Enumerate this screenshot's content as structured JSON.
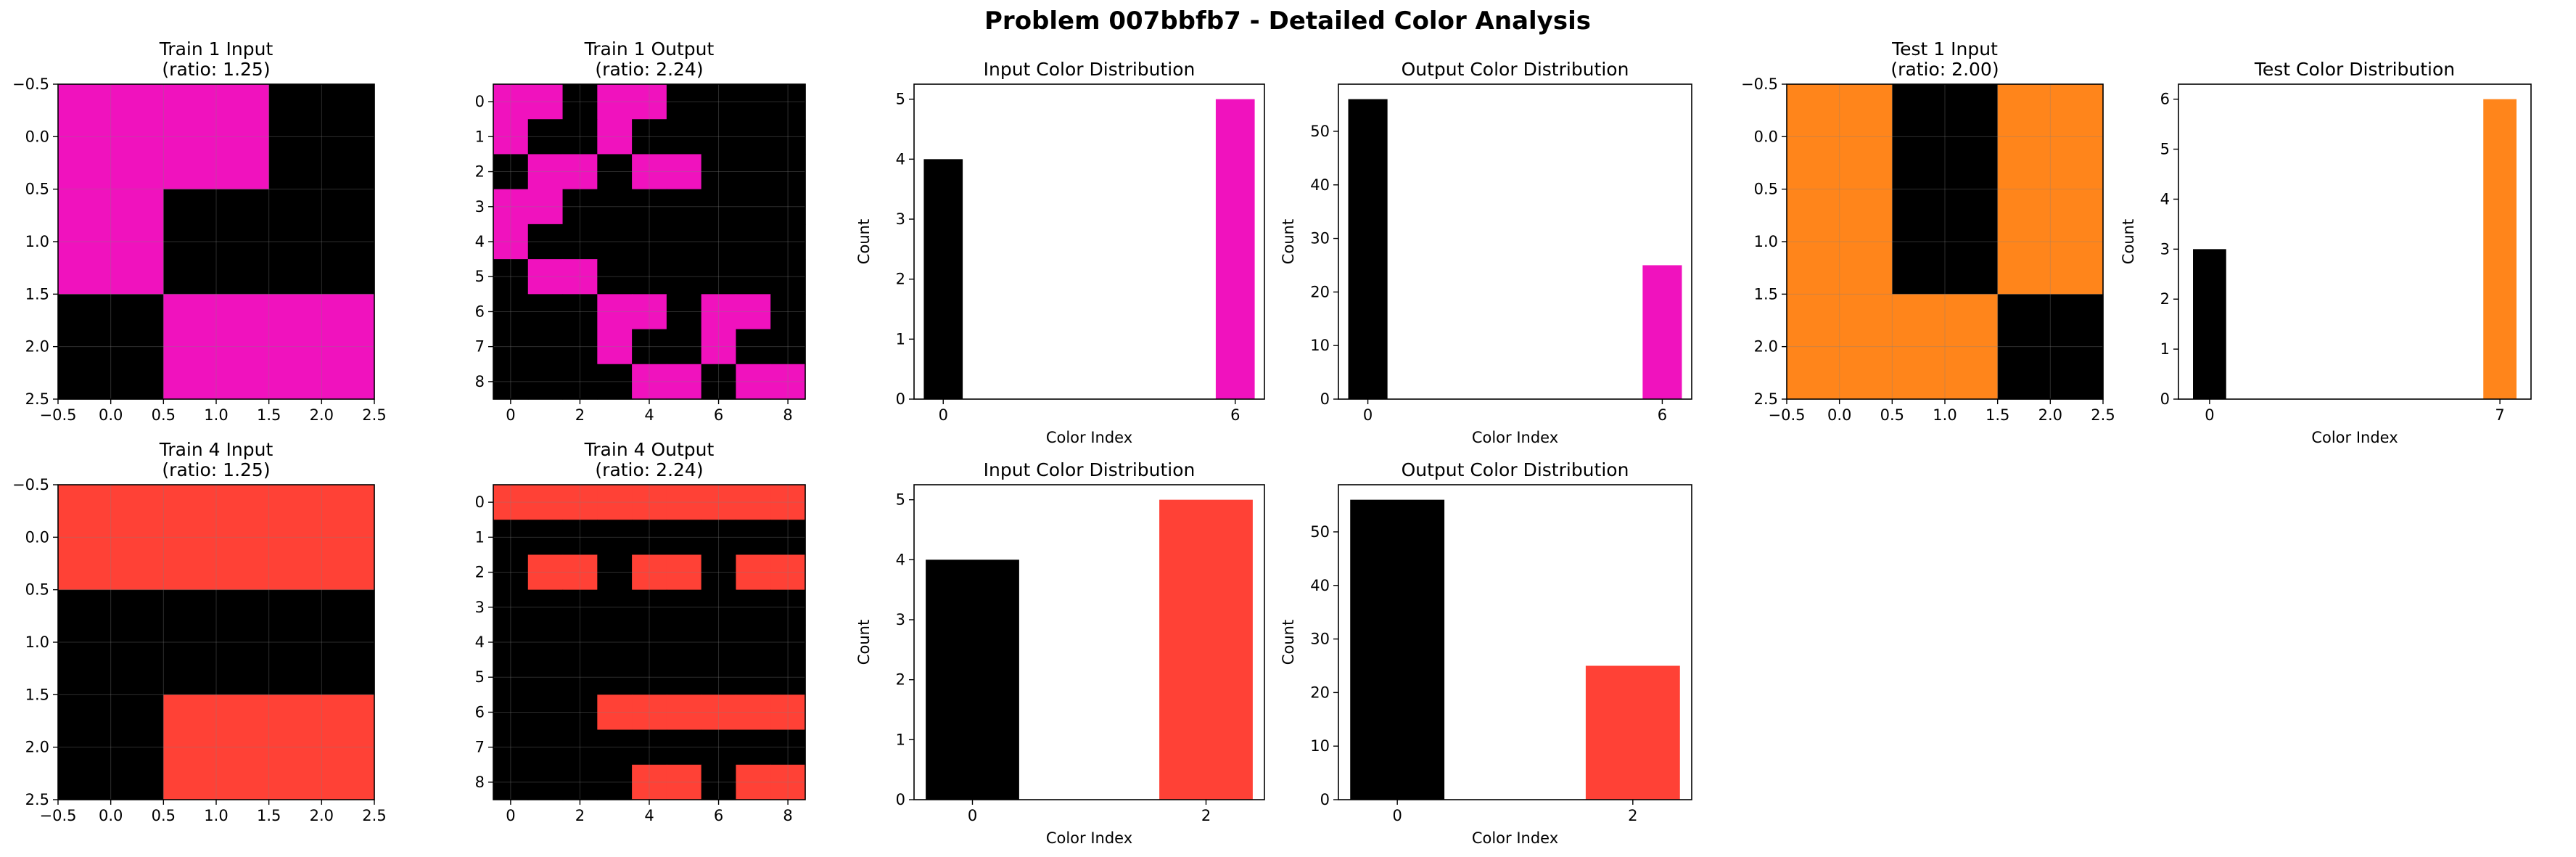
{
  "figure": {
    "title": "Problem 007bbfb7 - Detailed Color Analysis"
  },
  "colors": {
    "black": "#000000",
    "magenta": "#F012BE",
    "orange": "#FF851B",
    "red": "#FF4136",
    "grid": "#808080"
  },
  "chart_data": [
    {
      "id": "train1_input",
      "type": "heatmap",
      "title": "Train 1 Input\n(ratio: 1.25)",
      "grid": [
        [
          6,
          6,
          0
        ],
        [
          6,
          0,
          0
        ],
        [
          0,
          6,
          6
        ]
      ],
      "palette": {
        "0": "#000000",
        "6": "#F012BE"
      },
      "xlim": [
        -0.5,
        2.5
      ],
      "ylim": [
        -0.5,
        2.5
      ],
      "y_inverted": true,
      "xticks": [
        -0.5,
        0.0,
        0.5,
        1.0,
        1.5,
        2.0,
        2.5
      ],
      "yticks": [
        -0.5,
        0.0,
        0.5,
        1.0,
        1.5,
        2.0,
        2.5
      ],
      "xtick_labels": [
        "−0.5",
        "0.0",
        "0.5",
        "1.0",
        "1.5",
        "2.0",
        "2.5"
      ],
      "ytick_labels": [
        "−0.5",
        "0.0",
        "0.5",
        "1.0",
        "1.5",
        "2.0",
        "2.5"
      ],
      "gridlines": true
    },
    {
      "id": "train1_output",
      "type": "heatmap",
      "title": "Train 1 Output\n(ratio: 2.24)",
      "grid": [
        [
          6,
          6,
          0,
          6,
          6,
          0,
          0,
          0,
          0
        ],
        [
          6,
          0,
          0,
          6,
          0,
          0,
          0,
          0,
          0
        ],
        [
          0,
          6,
          6,
          0,
          6,
          6,
          0,
          0,
          0
        ],
        [
          6,
          6,
          0,
          0,
          0,
          0,
          0,
          0,
          0
        ],
        [
          6,
          0,
          0,
          0,
          0,
          0,
          0,
          0,
          0
        ],
        [
          0,
          6,
          6,
          0,
          0,
          0,
          0,
          0,
          0
        ],
        [
          0,
          0,
          0,
          6,
          6,
          0,
          6,
          6,
          0
        ],
        [
          0,
          0,
          0,
          6,
          0,
          0,
          6,
          0,
          0
        ],
        [
          0,
          0,
          0,
          0,
          6,
          6,
          0,
          6,
          6
        ]
      ],
      "palette": {
        "0": "#000000",
        "6": "#F012BE"
      },
      "xlim": [
        -0.5,
        8.5
      ],
      "ylim": [
        -0.5,
        8.5
      ],
      "y_inverted": true,
      "xticks": [
        0,
        2,
        4,
        6,
        8
      ],
      "yticks": [
        0,
        1,
        2,
        3,
        4,
        5,
        6,
        7,
        8
      ],
      "xtick_labels": [
        "0",
        "2",
        "4",
        "6",
        "8"
      ],
      "ytick_labels": [
        "0",
        "1",
        "2",
        "3",
        "4",
        "5",
        "6",
        "7",
        "8"
      ],
      "gridlines": true
    },
    {
      "id": "train1_input_dist",
      "type": "bar",
      "title": "Input Color Distribution",
      "x": [
        0,
        6
      ],
      "values": [
        4,
        5
      ],
      "bar_colors": [
        "#000000",
        "#F012BE"
      ],
      "bar_width": 0.8,
      "xlim": [
        -0.6,
        6.6
      ],
      "ylim": [
        0,
        5.25
      ],
      "xticks": [
        0,
        6
      ],
      "xtick_labels": [
        "0",
        "6"
      ],
      "yticks": [
        0,
        1,
        2,
        3,
        4,
        5
      ],
      "ytick_labels": [
        "0",
        "1",
        "2",
        "3",
        "4",
        "5"
      ],
      "xlabel": "Color Index",
      "ylabel": "Count",
      "gridlines": false
    },
    {
      "id": "train1_output_dist",
      "type": "bar",
      "title": "Output Color Distribution",
      "x": [
        0,
        6
      ],
      "values": [
        56,
        25
      ],
      "bar_colors": [
        "#000000",
        "#F012BE"
      ],
      "bar_width": 0.8,
      "xlim": [
        -0.6,
        6.6
      ],
      "ylim": [
        0,
        58.8
      ],
      "xticks": [
        0,
        6
      ],
      "xtick_labels": [
        "0",
        "6"
      ],
      "yticks": [
        0,
        10,
        20,
        30,
        40,
        50
      ],
      "ytick_labels": [
        "0",
        "10",
        "20",
        "30",
        "40",
        "50"
      ],
      "xlabel": "Color Index",
      "ylabel": "Count",
      "gridlines": false
    },
    {
      "id": "test1_input",
      "type": "heatmap",
      "title": "Test 1 Input\n(ratio: 2.00)",
      "grid": [
        [
          7,
          0,
          7
        ],
        [
          7,
          0,
          7
        ],
        [
          7,
          7,
          0
        ]
      ],
      "palette": {
        "0": "#000000",
        "7": "#FF851B"
      },
      "xlim": [
        -0.5,
        2.5
      ],
      "ylim": [
        -0.5,
        2.5
      ],
      "y_inverted": true,
      "xticks": [
        -0.5,
        0.0,
        0.5,
        1.0,
        1.5,
        2.0,
        2.5
      ],
      "yticks": [
        -0.5,
        0.0,
        0.5,
        1.0,
        1.5,
        2.0,
        2.5
      ],
      "xtick_labels": [
        "−0.5",
        "0.0",
        "0.5",
        "1.0",
        "1.5",
        "2.0",
        "2.5"
      ],
      "ytick_labels": [
        "−0.5",
        "0.0",
        "0.5",
        "1.0",
        "1.5",
        "2.0",
        "2.5"
      ],
      "gridlines": true
    },
    {
      "id": "test1_dist",
      "type": "bar",
      "title": "Test Color Distribution",
      "x": [
        0,
        7
      ],
      "values": [
        3,
        6
      ],
      "bar_colors": [
        "#000000",
        "#FF851B"
      ],
      "bar_width": 0.8,
      "xlim": [
        -0.75,
        7.75
      ],
      "ylim": [
        0,
        6.3
      ],
      "xticks": [
        0,
        7
      ],
      "xtick_labels": [
        "0",
        "7"
      ],
      "yticks": [
        0,
        1,
        2,
        3,
        4,
        5,
        6
      ],
      "ytick_labels": [
        "0",
        "1",
        "2",
        "3",
        "4",
        "5",
        "6"
      ],
      "xlabel": "Color Index",
      "ylabel": "Count",
      "gridlines": false
    },
    {
      "id": "train4_input",
      "type": "heatmap",
      "title": "Train 4 Input\n(ratio: 1.25)",
      "grid": [
        [
          2,
          2,
          2
        ],
        [
          0,
          0,
          0
        ],
        [
          0,
          2,
          2
        ]
      ],
      "palette": {
        "0": "#000000",
        "2": "#FF4136"
      },
      "xlim": [
        -0.5,
        2.5
      ],
      "ylim": [
        -0.5,
        2.5
      ],
      "y_inverted": true,
      "xticks": [
        -0.5,
        0.0,
        0.5,
        1.0,
        1.5,
        2.0,
        2.5
      ],
      "yticks": [
        -0.5,
        0.0,
        0.5,
        1.0,
        1.5,
        2.0,
        2.5
      ],
      "xtick_labels": [
        "−0.5",
        "0.0",
        "0.5",
        "1.0",
        "1.5",
        "2.0",
        "2.5"
      ],
      "ytick_labels": [
        "−0.5",
        "0.0",
        "0.5",
        "1.0",
        "1.5",
        "2.0",
        "2.5"
      ],
      "gridlines": true
    },
    {
      "id": "train4_output",
      "type": "heatmap",
      "title": "Train 4 Output\n(ratio: 2.24)",
      "grid": [
        [
          2,
          2,
          2,
          2,
          2,
          2,
          2,
          2,
          2
        ],
        [
          0,
          0,
          0,
          0,
          0,
          0,
          0,
          0,
          0
        ],
        [
          0,
          2,
          2,
          0,
          2,
          2,
          0,
          2,
          2
        ],
        [
          0,
          0,
          0,
          0,
          0,
          0,
          0,
          0,
          0
        ],
        [
          0,
          0,
          0,
          0,
          0,
          0,
          0,
          0,
          0
        ],
        [
          0,
          0,
          0,
          0,
          0,
          0,
          0,
          0,
          0
        ],
        [
          0,
          0,
          0,
          2,
          2,
          2,
          2,
          2,
          2
        ],
        [
          0,
          0,
          0,
          0,
          0,
          0,
          0,
          0,
          0
        ],
        [
          0,
          0,
          0,
          0,
          2,
          2,
          0,
          2,
          2
        ]
      ],
      "palette": {
        "0": "#000000",
        "2": "#FF4136"
      },
      "xlim": [
        -0.5,
        8.5
      ],
      "ylim": [
        -0.5,
        8.5
      ],
      "y_inverted": true,
      "xticks": [
        0,
        2,
        4,
        6,
        8
      ],
      "yticks": [
        0,
        1,
        2,
        3,
        4,
        5,
        6,
        7,
        8
      ],
      "xtick_labels": [
        "0",
        "2",
        "4",
        "6",
        "8"
      ],
      "ytick_labels": [
        "0",
        "1",
        "2",
        "3",
        "4",
        "5",
        "6",
        "7",
        "8"
      ],
      "gridlines": true
    },
    {
      "id": "train4_input_dist",
      "type": "bar",
      "title": "Input Color Distribution",
      "x": [
        0,
        2
      ],
      "values": [
        4,
        5
      ],
      "bar_colors": [
        "#000000",
        "#FF4136"
      ],
      "bar_width": 0.8,
      "xlim": [
        -0.5,
        2.5
      ],
      "ylim": [
        0,
        5.25
      ],
      "xticks": [
        0,
        2
      ],
      "xtick_labels": [
        "0",
        "2"
      ],
      "yticks": [
        0,
        1,
        2,
        3,
        4,
        5
      ],
      "ytick_labels": [
        "0",
        "1",
        "2",
        "3",
        "4",
        "5"
      ],
      "xlabel": "Color Index",
      "ylabel": "Count",
      "gridlines": false
    },
    {
      "id": "train4_output_dist",
      "type": "bar",
      "title": "Output Color Distribution",
      "x": [
        0,
        2
      ],
      "values": [
        56,
        25
      ],
      "bar_colors": [
        "#000000",
        "#FF4136"
      ],
      "bar_width": 0.8,
      "xlim": [
        -0.5,
        2.5
      ],
      "ylim": [
        0,
        58.8
      ],
      "xticks": [
        0,
        2
      ],
      "xtick_labels": [
        "0",
        "2"
      ],
      "yticks": [
        0,
        10,
        20,
        30,
        40,
        50
      ],
      "ytick_labels": [
        "0",
        "10",
        "20",
        "30",
        "40",
        "50"
      ],
      "xlabel": "Color Index",
      "ylabel": "Count",
      "gridlines": false
    }
  ]
}
